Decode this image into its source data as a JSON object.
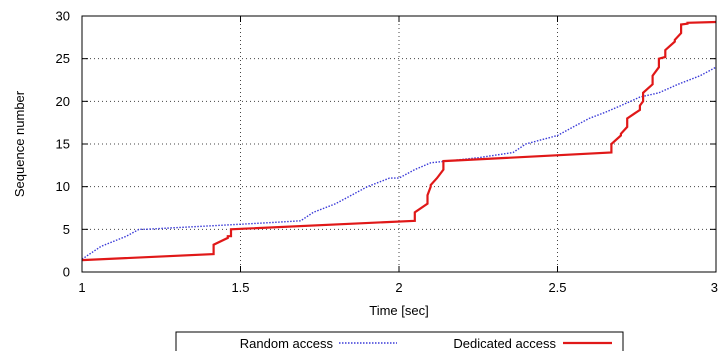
{
  "chart_data": {
    "type": "line",
    "title": "",
    "xlabel": "Time [sec]",
    "ylabel": "Sequence number",
    "xlim": [
      1,
      3
    ],
    "ylim": [
      0,
      30
    ],
    "xticks": [
      1,
      1.5,
      2,
      2.5,
      3
    ],
    "xtick_labels": [
      "1",
      "1.5",
      "2",
      "2.5",
      "3"
    ],
    "yticks": [
      0,
      5,
      10,
      15,
      20,
      25,
      30
    ],
    "ytick_labels": [
      "0",
      "5",
      "10",
      "15",
      "20",
      "25",
      "30"
    ],
    "grid": true,
    "legend_position": "below plot",
    "series": [
      {
        "name": "Random access",
        "color": "#3a3ad8",
        "style": "dotted",
        "x": [
          1.0,
          1.06,
          1.1,
          1.14,
          1.18,
          1.2,
          1.3,
          1.45,
          1.6,
          1.69,
          1.73,
          1.8,
          1.85,
          1.9,
          1.97,
          2.0,
          2.05,
          2.1,
          2.15,
          2.25,
          2.36,
          2.4,
          2.45,
          2.5,
          2.55,
          2.6,
          2.65,
          2.7,
          2.76,
          2.82,
          2.88,
          2.95,
          3.0
        ],
        "y": [
          1.5,
          3,
          3.6,
          4.2,
          5,
          5,
          5.2,
          5.5,
          5.8,
          6,
          7,
          8,
          9,
          10,
          11,
          11,
          12,
          12.8,
          13,
          13.4,
          14,
          15,
          15.5,
          16,
          17,
          18,
          18.7,
          19.5,
          20.5,
          21,
          22,
          23,
          24
        ]
      },
      {
        "name": "Dedicated access",
        "color": "#e01818",
        "style": "solid",
        "x": [
          1.0,
          1.415,
          1.415,
          1.46,
          1.46,
          1.47,
          1.47,
          2.05,
          2.05,
          2.09,
          2.09,
          2.1,
          2.1,
          2.12,
          2.12,
          2.14,
          2.14,
          2.67,
          2.67,
          2.7,
          2.7,
          2.72,
          2.72,
          2.76,
          2.76,
          2.77,
          2.77,
          2.8,
          2.8,
          2.82,
          2.82,
          2.84,
          2.84,
          2.87,
          2.87,
          2.89,
          2.89,
          2.91,
          2.91,
          3.0
        ],
        "y": [
          1.4,
          2.1,
          3.2,
          4.0,
          4.2,
          4.2,
          5.0,
          6.0,
          7.0,
          8.0,
          9.0,
          10.0,
          10.2,
          11.0,
          11.0,
          12.0,
          13.0,
          14.0,
          15.0,
          16.0,
          16.2,
          17.0,
          18.0,
          19.0,
          19.5,
          20.0,
          21.0,
          22.0,
          23.0,
          24.0,
          25.0,
          25.2,
          26.0,
          27.0,
          27.2,
          28.0,
          29.0,
          29.1,
          29.2,
          29.3
        ]
      }
    ]
  }
}
